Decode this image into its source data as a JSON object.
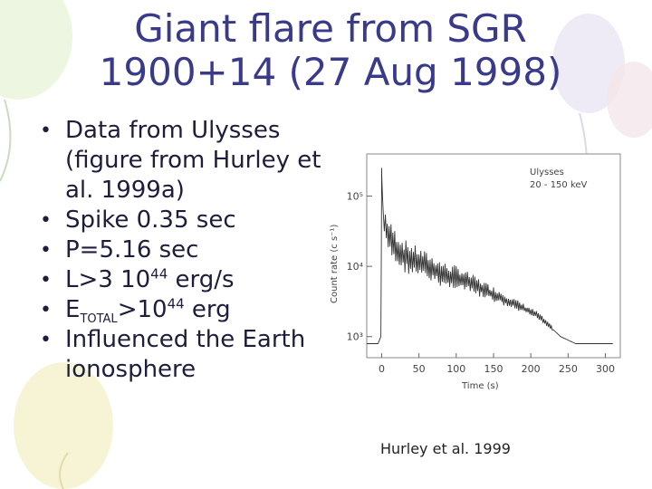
{
  "title": "Giant flare from SGR 1900+14 (27 Aug 1998)",
  "bullets": [
    {
      "text": "Data from Ulysses (figure from Hurley et al. 1999a)"
    },
    {
      "text": "Spike 0.35 sec"
    },
    {
      "text": "P=5.16 sec"
    },
    {
      "pre": "L>3 10",
      "sup": "44",
      "post": " erg/s"
    },
    {
      "pre": "E",
      "sub": "TOTAL",
      "mid": ">10",
      "sup": "44",
      "post": " erg"
    },
    {
      "text": "Influenced the Earth ionosphere"
    }
  ],
  "caption": "Hurley et al. 1999",
  "chart_data": {
    "type": "line",
    "xlabel": "Time (s)",
    "ylabel": "Count rate (c s⁻¹)",
    "legend": [
      "Ulysses",
      "20 - 150 keV"
    ],
    "x_ticks": [
      "0",
      "50",
      "100",
      "150",
      "200",
      "250",
      "300"
    ],
    "y_ticks": [
      "10³",
      "10⁴",
      "10⁵"
    ],
    "xlim": [
      -20,
      320
    ],
    "ylog": true,
    "ylim_log10": [
      2.7,
      5.6
    ],
    "series": [
      {
        "x": [
          -20,
          -5,
          -1,
          0,
          0.35,
          2,
          5,
          10,
          20,
          30,
          40,
          50,
          60,
          70,
          80,
          90,
          100,
          110,
          120,
          130,
          140,
          150,
          160,
          170,
          180,
          190,
          200,
          210,
          220,
          230,
          240,
          250,
          260,
          270,
          280,
          290,
          300,
          310
        ],
        "log10": [
          2.9,
          2.9,
          3.0,
          5.4,
          5.2,
          4.8,
          4.55,
          4.4,
          4.25,
          4.15,
          4.1,
          4.05,
          4.0,
          3.95,
          3.9,
          3.85,
          3.85,
          3.8,
          3.75,
          3.7,
          3.65,
          3.6,
          3.55,
          3.5,
          3.45,
          3.4,
          3.35,
          3.3,
          3.2,
          3.1,
          3.0,
          2.95,
          2.9,
          2.9,
          2.9,
          2.9,
          2.9,
          2.9
        ]
      }
    ]
  }
}
